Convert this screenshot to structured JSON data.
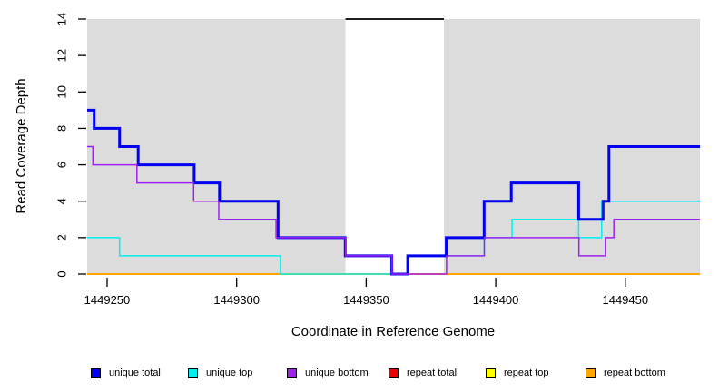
{
  "chart_data": {
    "type": "line",
    "subtype": "step-coverage-plot",
    "title": "",
    "xlabel": "Coordinate in Reference Genome",
    "ylabel": "Read Coverage Depth",
    "xlim": [
      1449242.3,
      1449478.8
    ],
    "ylim": [
      0,
      14
    ],
    "x_ticks": [
      1449250,
      1449300,
      1449350,
      1449400,
      1449450
    ],
    "y_ticks": [
      0,
      2,
      4,
      6,
      8,
      10,
      12,
      14
    ],
    "grid": "off",
    "plot_background_color": "#DCDCDC",
    "page_background_color": "#FFFFFF",
    "highlight_region": {
      "x_start": 1449342,
      "x_end": 1449380,
      "fill": "#FFFFFF",
      "top_marker_y": 14,
      "top_marker_color": "#000000"
    },
    "series": [
      {
        "name": "repeat total",
        "color": "#EE0000",
        "width": 1.5,
        "start_value": 0,
        "steps": []
      },
      {
        "name": "repeat top",
        "color": "#FFFF00",
        "width": 1.5,
        "start_value": 0,
        "steps": []
      },
      {
        "name": "repeat bottom",
        "color": "#FFA500",
        "width": 2,
        "start_value": 0,
        "steps": []
      },
      {
        "name": "unique top",
        "color": "#00EEEE",
        "width": 1.5,
        "start_value": 2,
        "steps": [
          [
            1449254.8,
            1
          ],
          [
            1449316.9,
            0
          ],
          [
            1449366.2,
            1
          ],
          [
            1449395.5,
            2
          ],
          [
            1449406.3,
            3
          ],
          [
            1449432.0,
            2
          ],
          [
            1449440.9,
            4
          ]
        ]
      },
      {
        "name": "unique total",
        "color": "#0000EE",
        "width": 3,
        "start_value": 9,
        "steps": [
          [
            1449245.0,
            8
          ],
          [
            1449254.8,
            7
          ],
          [
            1449262.0,
            6
          ],
          [
            1449283.6,
            5
          ],
          [
            1449293.4,
            4
          ],
          [
            1449316.0,
            2
          ],
          [
            1449341.9,
            1
          ],
          [
            1449359.9,
            0
          ],
          [
            1449366.0,
            1
          ],
          [
            1449380.9,
            2
          ],
          [
            1449395.5,
            4
          ],
          [
            1449406.0,
            5
          ],
          [
            1449432.0,
            3
          ],
          [
            1449441.4,
            4
          ],
          [
            1449443.7,
            7
          ]
        ]
      },
      {
        "name": "unique bottom",
        "color": "#A020F0",
        "width": 1.5,
        "start_value": 7,
        "steps": [
          [
            1449244.5,
            6
          ],
          [
            1449261.5,
            5
          ],
          [
            1449283.4,
            4
          ],
          [
            1449293.1,
            3
          ],
          [
            1449315.2,
            2
          ],
          [
            1449342.0,
            1
          ],
          [
            1449360.0,
            0
          ],
          [
            1449381.0,
            1
          ],
          [
            1449395.6,
            2
          ],
          [
            1449432.1,
            1
          ],
          [
            1449442.3,
            2
          ],
          [
            1449445.6,
            3
          ]
        ]
      }
    ],
    "legend": {
      "position": "bottom",
      "items": [
        {
          "label": "unique total",
          "color": "#0000EE"
        },
        {
          "label": "unique top",
          "color": "#00EEEE"
        },
        {
          "label": "unique bottom",
          "color": "#A020F0"
        },
        {
          "label": "repeat total",
          "color": "#EE0000"
        },
        {
          "label": "repeat top",
          "color": "#FFFF00"
        },
        {
          "label": "repeat bottom",
          "color": "#FFA500"
        }
      ]
    }
  }
}
